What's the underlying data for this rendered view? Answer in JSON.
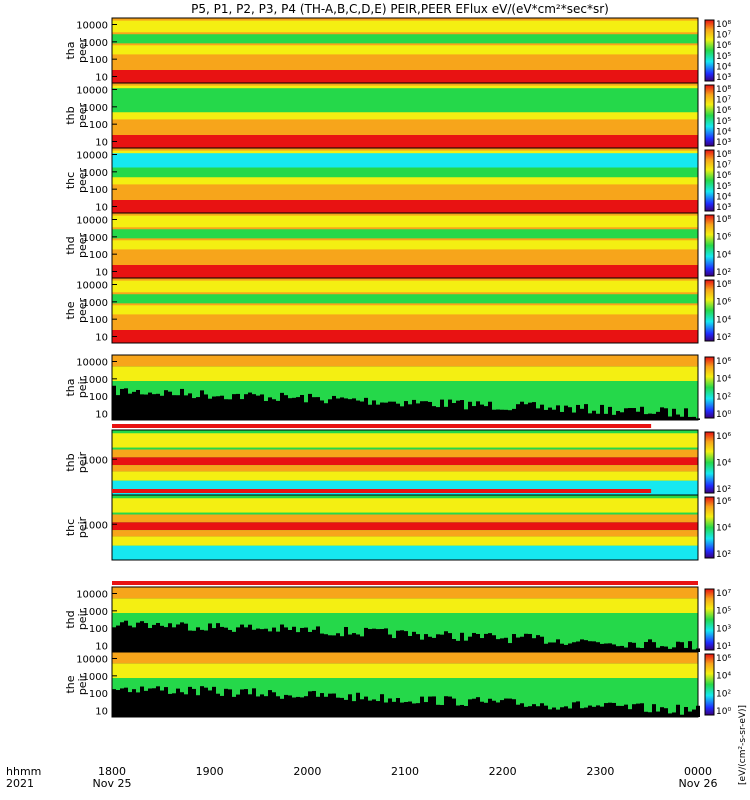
{
  "chart_data": {
    "type": "heatmap",
    "title": "P5, P1, P2, P3, P4 (TH-A,B,C,D,E) PEIR,PEER EFlux eV/(eV*cm²*sec*sr)",
    "colorbar_label": "[eV/(cm²-s-sr-eV)]",
    "colors": {
      "black": "#000000",
      "blue": "#1f2bff",
      "cyan": "#16e8f0",
      "green": "#25d84a",
      "yellow": "#f4ef12",
      "orange": "#f7a51b",
      "red": "#e81212"
    },
    "x_axis": {
      "label_top": "hhmm",
      "label_bottom": "2021",
      "ticks": [
        {
          "label": "1800",
          "date": "Nov 25"
        },
        {
          "label": "1900",
          "date": ""
        },
        {
          "label": "2000",
          "date": ""
        },
        {
          "label": "2100",
          "date": ""
        },
        {
          "label": "2200",
          "date": ""
        },
        {
          "label": "2300",
          "date": ""
        },
        {
          "label": "0000",
          "date": "Nov 26"
        }
      ]
    },
    "panels": [
      {
        "probe": "tha",
        "species": "peer",
        "yticks": [
          "10000",
          "1000",
          "100",
          "10"
        ],
        "cb_ticks": [
          "10⁸",
          "10⁷",
          "10⁶",
          "10⁵",
          "10⁴",
          "10³"
        ]
      },
      {
        "probe": "thb",
        "species": "peer",
        "yticks": [
          "10000",
          "1000",
          "100",
          "10"
        ],
        "cb_ticks": [
          "10⁸",
          "10⁷",
          "10⁶",
          "10⁵",
          "10⁴",
          "10³"
        ]
      },
      {
        "probe": "thc",
        "species": "peer",
        "yticks": [
          "10000",
          "1000",
          "100",
          "10"
        ],
        "cb_ticks": [
          "10⁸",
          "10⁷",
          "10⁶",
          "10⁵",
          "10⁴",
          "10³"
        ]
      },
      {
        "probe": "thd",
        "species": "peer",
        "yticks": [
          "10000",
          "1000",
          "100",
          "10"
        ],
        "cb_ticks": [
          "10⁸",
          "10⁶",
          "10⁴",
          "10²"
        ]
      },
      {
        "probe": "the",
        "species": "peer",
        "yticks": [
          "10000",
          "1000",
          "100",
          "10"
        ],
        "cb_ticks": [
          "10⁸",
          "10⁶",
          "10⁴",
          "10²"
        ]
      },
      {
        "probe": "tha",
        "species": "peir",
        "yticks": [
          "10000",
          "1000",
          "100",
          "10"
        ],
        "cb_ticks": [
          "10⁶",
          "10⁴",
          "10²",
          "10⁰"
        ]
      },
      {
        "probe": "thb",
        "species": "peir",
        "yticks": [
          "1000"
        ],
        "cb_ticks": [
          "10⁶",
          "10⁴",
          "10²"
        ]
      },
      {
        "probe": "thc",
        "species": "peir",
        "yticks": [
          "1000"
        ],
        "cb_ticks": [
          "10⁶",
          "10⁴",
          "10²"
        ]
      },
      {
        "probe": "thd",
        "species": "peir",
        "yticks": [
          "10000",
          "1000",
          "100",
          "10"
        ],
        "cb_ticks": [
          "10⁷",
          "10⁵",
          "10³",
          "10¹"
        ]
      },
      {
        "probe": "the",
        "species": "peir",
        "yticks": [
          "10000",
          "1000",
          "100",
          "10"
        ],
        "cb_ticks": [
          "10⁶",
          "10⁴",
          "10²",
          "10⁰"
        ]
      }
    ]
  }
}
